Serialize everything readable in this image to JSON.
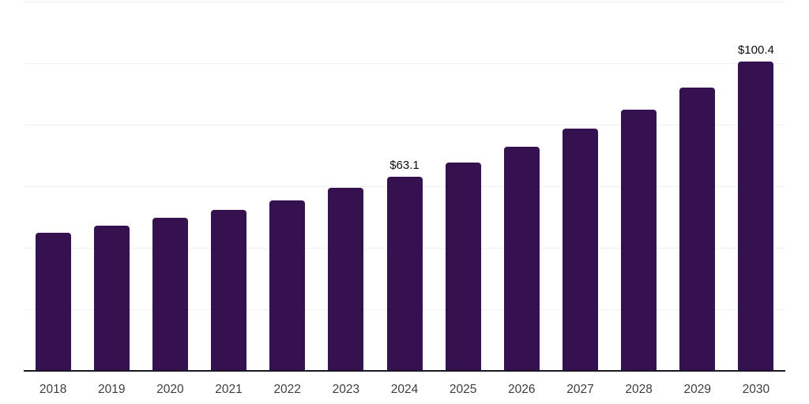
{
  "chart_data": {
    "type": "bar",
    "title": "",
    "xlabel": "",
    "ylabel": "",
    "categories": [
      "2018",
      "2019",
      "2020",
      "2021",
      "2022",
      "2023",
      "2024",
      "2025",
      "2026",
      "2027",
      "2028",
      "2029",
      "2030"
    ],
    "values": [
      44.8,
      47.1,
      49.7,
      52.4,
      55.4,
      59.4,
      63.1,
      67.6,
      72.9,
      78.7,
      85.0,
      92.1,
      100.4
    ],
    "data_labels": [
      "",
      "",
      "",
      "",
      "",
      "",
      "$63.1",
      "",
      "",
      "",
      "",
      "",
      "$100.4"
    ],
    "ylim": [
      0,
      120
    ],
    "gridline_values": [
      20,
      40,
      60,
      80,
      100,
      120
    ],
    "grid": true,
    "legend": false,
    "colors": {
      "bar": "#361150",
      "axis_line": "#1a1626",
      "gridline": "#f0f0f0",
      "data_label": "#0f0f0f",
      "tick_label": "#3d3d3d",
      "background": "#ffffff"
    }
  }
}
